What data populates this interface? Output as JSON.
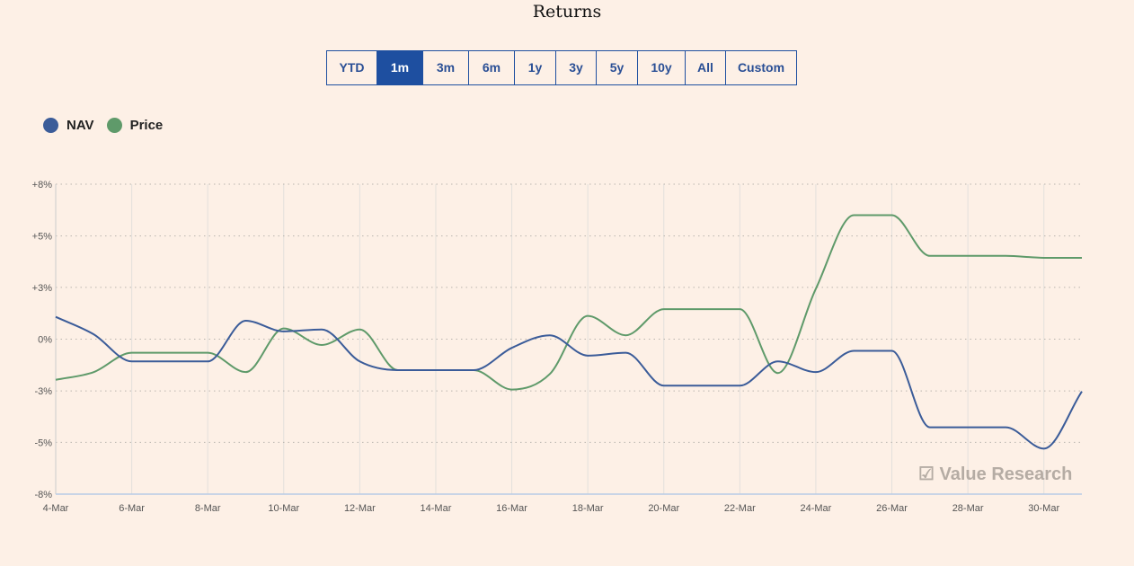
{
  "title": "Returns",
  "tabs": [
    {
      "label": "YTD",
      "active": false
    },
    {
      "label": "1m",
      "active": true
    },
    {
      "label": "3m",
      "active": false
    },
    {
      "label": "6m",
      "active": false
    },
    {
      "label": "1y",
      "active": false
    },
    {
      "label": "3y",
      "active": false
    },
    {
      "label": "5y",
      "active": false
    },
    {
      "label": "10y",
      "active": false
    },
    {
      "label": "All",
      "active": false
    },
    {
      "label": "Custom",
      "active": false
    }
  ],
  "watermark": "Value Research",
  "chart_data": {
    "type": "line",
    "title": "Returns",
    "xlabel": "",
    "ylabel": "",
    "ylim": [
      -8,
      8
    ],
    "y_ticks": [
      8,
      5.33,
      2.67,
      0,
      -2.67,
      -5.33,
      -8
    ],
    "y_tick_labels": [
      "+8%",
      "+5%",
      "+3%",
      "0%",
      "-3%",
      "-5%",
      "-8%"
    ],
    "x": [
      "4-Mar",
      "5-Mar",
      "6-Mar",
      "7-Mar",
      "8-Mar",
      "9-Mar",
      "10-Mar",
      "11-Mar",
      "12-Mar",
      "13-Mar",
      "14-Mar",
      "15-Mar",
      "16-Mar",
      "17-Mar",
      "18-Mar",
      "19-Mar",
      "20-Mar",
      "21-Mar",
      "22-Mar",
      "23-Mar",
      "24-Mar",
      "25-Mar",
      "26-Mar",
      "27-Mar",
      "28-Mar",
      "29-Mar",
      "30-Mar",
      "31-Mar"
    ],
    "x_tick_labels": [
      "4-Mar",
      "6-Mar",
      "8-Mar",
      "10-Mar",
      "12-Mar",
      "14-Mar",
      "16-Mar",
      "18-Mar",
      "20-Mar",
      "22-Mar",
      "24-Mar",
      "26-Mar",
      "28-Mar",
      "30-Mar"
    ],
    "grid": true,
    "legend_position": "top-left",
    "series": [
      {
        "name": "NAV",
        "color": "#3b5c99",
        "values": [
          1.15,
          0.25,
          -1.15,
          -1.15,
          -1.15,
          0.95,
          0.4,
          0.5,
          -1.15,
          -1.6,
          -1.6,
          -1.6,
          -0.45,
          0.2,
          -0.85,
          -0.7,
          -2.4,
          -2.4,
          -2.4,
          -1.15,
          -1.7,
          -0.6,
          -0.6,
          -4.55,
          -4.55,
          -4.55,
          -5.65,
          -2.7
        ]
      },
      {
        "name": "Price",
        "color": "#5f9a6a",
        "values": [
          -2.1,
          -1.7,
          -0.7,
          -0.7,
          -0.7,
          -1.7,
          0.55,
          -0.3,
          0.5,
          -1.6,
          -1.6,
          -1.6,
          -2.6,
          -1.8,
          1.2,
          0.2,
          1.55,
          1.55,
          1.55,
          -1.75,
          2.6,
          6.4,
          6.4,
          4.3,
          4.3,
          4.3,
          4.2,
          4.2
        ]
      }
    ]
  }
}
